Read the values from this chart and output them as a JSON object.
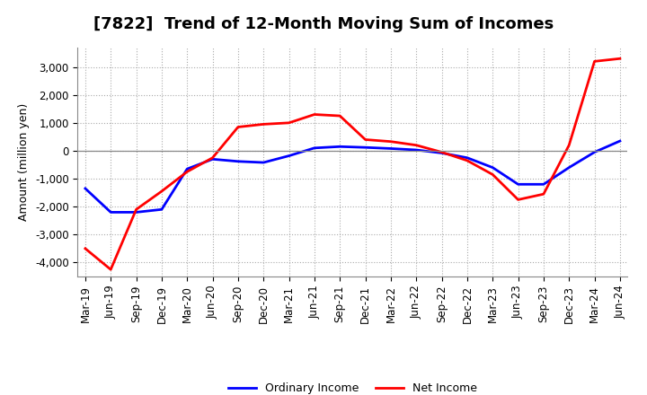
{
  "title": "[7822]  Trend of 12-Month Moving Sum of Incomes",
  "ylabel": "Amount (million yen)",
  "ylim": [
    -4500,
    3700
  ],
  "yticks": [
    -4000,
    -3000,
    -2000,
    -1000,
    0,
    1000,
    2000,
    3000
  ],
  "background_color": "#ffffff",
  "plot_bg_color": "#ffffff",
  "grid_color": "#aaaaaa",
  "x_labels": [
    "Mar-19",
    "Jun-19",
    "Sep-19",
    "Dec-19",
    "Mar-20",
    "Jun-20",
    "Sep-20",
    "Dec-20",
    "Mar-21",
    "Jun-21",
    "Sep-21",
    "Dec-21",
    "Mar-22",
    "Jun-22",
    "Sep-22",
    "Dec-22",
    "Mar-23",
    "Jun-23",
    "Sep-23",
    "Dec-23",
    "Mar-24",
    "Jun-24"
  ],
  "ordinary_income": [
    -1350,
    -2200,
    -2200,
    -2100,
    -650,
    -300,
    -380,
    -420,
    -180,
    100,
    150,
    120,
    80,
    30,
    -80,
    -250,
    -600,
    -1200,
    -1200,
    -600,
    -50,
    350
  ],
  "net_income": [
    -3500,
    -4250,
    -2100,
    -1450,
    -750,
    -250,
    850,
    950,
    1000,
    1300,
    1250,
    400,
    330,
    200,
    -50,
    -350,
    -850,
    -1750,
    -1550,
    200,
    3200,
    3300
  ],
  "ordinary_income_color": "#0000ff",
  "net_income_color": "#ff0000",
  "line_width": 2.0,
  "legend_ordinary": "Ordinary Income",
  "legend_net": "Net Income",
  "title_fontsize": 13,
  "axis_label_fontsize": 9,
  "tick_fontsize": 8.5
}
